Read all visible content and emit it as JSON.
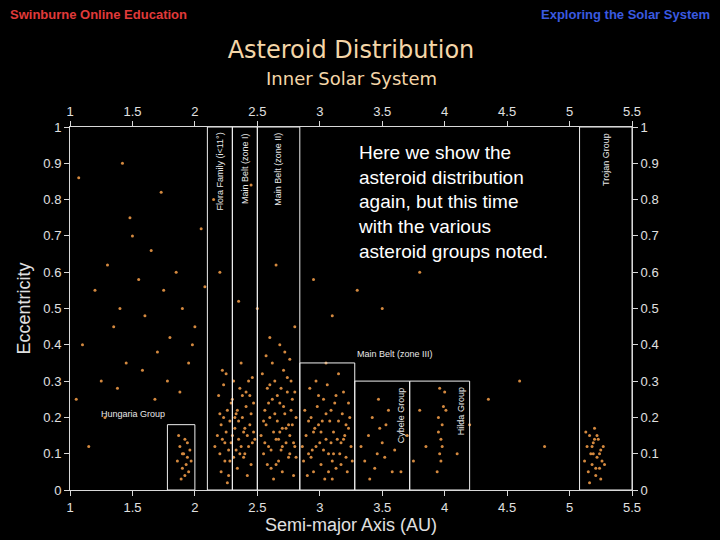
{
  "chart_data": {
    "type": "scatter",
    "title": "Asteroid Distribution",
    "subtitle": "Inner Solar System",
    "headers": [
      "Swinburne Online Education",
      "Exploring the Solar System"
    ],
    "x_label": "Semi-major Axis (AU)",
    "y_label": "Eccentricity",
    "xlim": [
      1,
      5.5
    ],
    "xticks": [
      1,
      1.5,
      2,
      2.5,
      3,
      3.5,
      4,
      4.5,
      5,
      5.5
    ],
    "ylim": [
      0,
      1
    ],
    "yticks": [
      0,
      0.1,
      0.2,
      0.3,
      0.4,
      0.5,
      0.6,
      0.7,
      0.8,
      0.9,
      1
    ],
    "grid": false,
    "color": "#d4893f",
    "marker": "dot",
    "annotation": [
      "Here we show the",
      "asteroid distribution",
      "again, but this time",
      "with the various",
      "asteroid groups noted."
    ],
    "groups": [
      {
        "label": "Hungaria Group",
        "x": [
          1.78,
          2.0
        ],
        "top": 0.18
      },
      {
        "label": "Flora Family (i<11°)",
        "x": [
          2.1,
          2.3
        ],
        "top": 1
      },
      {
        "label": "Main Belt (zone I)",
        "x": [
          2.3,
          2.5
        ],
        "top": 1
      },
      {
        "label": "Main Belt (zone II)",
        "x": [
          2.5,
          2.84
        ],
        "top": 1
      },
      {
        "label": "Main Belt (zone III)",
        "x": [
          2.84,
          3.28
        ],
        "top": 0.35
      },
      {
        "label": "Cybele Group",
        "x": [
          3.28,
          3.72
        ],
        "top": 0.3
      },
      {
        "label": "Hilda Group",
        "x": [
          3.72,
          4.2
        ],
        "top": 0.3
      },
      {
        "label": "Trojan Group",
        "x": [
          5.08,
          5.5
        ],
        "top": 1
      }
    ],
    "x": [
      1.86,
      1.88,
      1.9,
      1.91,
      1.92,
      1.93,
      1.94,
      1.95,
      1.96,
      1.87,
      1.89,
      1.92,
      1.94,
      1.97,
      1.9,
      2.16,
      2.18,
      2.2,
      2.21,
      2.22,
      2.23,
      2.24,
      2.25,
      2.26,
      2.27,
      2.28,
      2.29,
      2.3,
      2.31,
      2.32,
      2.33,
      2.34,
      2.35,
      2.36,
      2.37,
      2.38,
      2.39,
      2.4,
      2.41,
      2.42,
      2.43,
      2.44,
      2.45,
      2.46,
      2.47,
      2.19,
      2.21,
      2.23,
      2.25,
      2.27,
      2.29,
      2.31,
      2.33,
      2.35,
      2.37,
      2.39,
      2.41,
      2.43,
      2.45,
      2.47,
      2.22,
      2.26,
      2.3,
      2.34,
      2.38,
      2.42,
      2.46,
      2.2,
      2.24,
      2.28,
      2.32,
      2.36,
      2.4,
      2.44,
      2.48,
      2.53,
      2.55,
      2.56,
      2.57,
      2.58,
      2.59,
      2.6,
      2.61,
      2.62,
      2.63,
      2.64,
      2.65,
      2.66,
      2.67,
      2.68,
      2.69,
      2.7,
      2.71,
      2.72,
      2.73,
      2.74,
      2.75,
      2.76,
      2.77,
      2.78,
      2.79,
      2.8,
      2.81,
      2.54,
      2.58,
      2.62,
      2.66,
      2.7,
      2.74,
      2.78,
      2.56,
      2.6,
      2.64,
      2.68,
      2.72,
      2.76,
      2.8,
      2.55,
      2.59,
      2.63,
      2.67,
      2.71,
      2.75,
      2.79,
      2.57,
      2.61,
      2.65,
      2.69,
      2.73,
      2.77,
      2.81,
      2.6,
      2.68,
      2.76,
      2.7,
      2.87,
      2.89,
      2.91,
      2.93,
      2.95,
      2.97,
      2.99,
      3.01,
      3.03,
      3.05,
      3.07,
      3.09,
      3.11,
      3.13,
      3.15,
      3.17,
      3.19,
      3.21,
      3.23,
      3.25,
      2.88,
      2.92,
      2.96,
      3,
      3.04,
      3.08,
      3.12,
      3.16,
      3.2,
      3.24,
      2.9,
      2.94,
      2.98,
      3.02,
      3.06,
      3.1,
      3.14,
      3.18,
      3.22,
      3.26,
      2.86,
      2.97,
      3.01,
      3.05,
      3.09,
      3.13,
      3.17,
      3.21,
      2.93,
      3.15,
      3.03,
      3.07,
      3.11,
      2.99,
      3.19,
      2.91,
      3.23,
      3.05,
      3.1,
      2.95,
      3.33,
      3.36,
      3.39,
      3.42,
      3.44,
      3.46,
      3.48,
      3.5,
      3.52,
      3.55,
      3.58,
      3.4,
      3.47,
      3.53,
      3.6,
      3.94,
      3.96,
      3.97,
      3.98,
      3.95,
      3.99,
      4,
      3.96,
      3.97,
      3.98,
      3.95,
      4.01,
      3.7,
      3.75,
      3.8,
      3.85,
      4.1,
      4.2,
      4.35,
      4.6,
      4.8,
      3.65,
      5.12,
      5.14,
      5.15,
      5.16,
      5.17,
      5.18,
      5.19,
      5.2,
      5.21,
      5.22,
      5.23,
      5.24,
      5.25,
      5.26,
      5.27,
      5.13,
      5.16,
      5.19,
      5.22,
      5.25,
      5.28,
      5.18,
      5.21,
      5.24,
      5.2,
      1.05,
      1.1,
      1.2,
      1.25,
      1.3,
      1.35,
      1.4,
      1.45,
      1.5,
      1.55,
      1.6,
      1.65,
      1.7,
      1.75,
      1.8,
      1.85,
      1.9,
      1.95,
      2.0,
      2.05,
      1.15,
      1.28,
      1.38,
      1.48,
      1.58,
      1.68,
      1.78,
      1.88,
      1.98,
      2.08,
      2.2,
      2.35,
      2.5,
      2.65,
      2.8,
      2.95,
      3.1,
      3.3,
      3.5,
      3.8,
      1.07,
      1.42,
      1.73,
      2.15,
      2.45
    ],
    "values": [
      0.08,
      0.12,
      0.06,
      0.1,
      0.14,
      0.07,
      0.09,
      0.05,
      0.11,
      0.15,
      0.03,
      0.04,
      0.13,
      0.08,
      0.1,
      0.12,
      0.15,
      0.1,
      0.18,
      0.14,
      0.2,
      0.08,
      0.16,
      0.22,
      0.11,
      0.19,
      0.13,
      0.25,
      0.09,
      0.17,
      0.21,
      0.06,
      0.14,
      0.28,
      0.12,
      0.2,
      0.16,
      0.1,
      0.23,
      0.15,
      0.3,
      0.18,
      0.07,
      0.13,
      0.24,
      0.26,
      0.05,
      0.29,
      0.32,
      0.04,
      0.24,
      0.3,
      0.11,
      0.19,
      0.35,
      0.09,
      0.27,
      0.12,
      0.21,
      0.16,
      0.33,
      0.02,
      0.15,
      0.22,
      0.26,
      0.04,
      0.31,
      0.21,
      0.13,
      0.08,
      0.2,
      0.1,
      0.17,
      0.26,
      0.14,
      0.15,
      0.1,
      0.22,
      0.18,
      0.28,
      0.12,
      0.2,
      0.06,
      0.25,
      0.16,
      0.3,
      0.14,
      0.19,
      0.08,
      0.24,
      0.11,
      0.17,
      0.33,
      0.21,
      0.13,
      0.27,
      0.09,
      0.15,
      0.22,
      0.18,
      0.04,
      0.12,
      0.2,
      0.32,
      0.07,
      0.35,
      0.26,
      0.05,
      0.31,
      0.25,
      0.13,
      0.29,
      0.21,
      0.16,
      0.38,
      0.1,
      0.27,
      0.19,
      0.24,
      0.03,
      0.14,
      0.23,
      0.18,
      0.13,
      0.37,
      0.11,
      0.07,
      0.28,
      0.17,
      0.3,
      0.09,
      0.42,
      0.4,
      0.36,
      0.12,
      0.08,
      0.15,
      0.1,
      0.2,
      0.05,
      0.12,
      0.18,
      0.07,
      0.25,
      0.14,
      0.1,
      0.22,
      0.16,
      0.06,
      0.19,
      0.13,
      0.27,
      0.09,
      0.17,
      0.12,
      0.22,
      0.28,
      0.17,
      0.13,
      0.03,
      0.19,
      0.24,
      0.1,
      0.15,
      0.2,
      0.04,
      0.11,
      0.23,
      0.19,
      0.29,
      0.08,
      0.14,
      0.21,
      0.05,
      0.08,
      0.12,
      0.3,
      0.16,
      0.21,
      0.13,
      0.26,
      0.07,
      0.18,
      0.09,
      0.32,
      0.11,
      0.05,
      0.1,
      0.26,
      0.14,
      0.19,
      0.24,
      0.35,
      0.03,
      0.16,
      0.12,
      0.08,
      0.15,
      0.2,
      0.06,
      0.1,
      0.17,
      0.13,
      0.09,
      0.22,
      0.05,
      0.03,
      0.25,
      0.18,
      0.11,
      0.05,
      0.1,
      0.14,
      0.18,
      0.2,
      0.23,
      0.27,
      0.28,
      0.08,
      0.12,
      0.16,
      0.22,
      0.15,
      0.08,
      0.22,
      0.12,
      0.1,
      0.18,
      0.25,
      0.3,
      0.12,
      0.05,
      0.08,
      0.12,
      0.05,
      0.15,
      0.1,
      0.07,
      0.13,
      0.17,
      0.04,
      0.09,
      0.14,
      0.06,
      0.11,
      0.08,
      0.12,
      0.16,
      0.02,
      0.1,
      0.15,
      0.03,
      0.07,
      0.12,
      0.06,
      0.1,
      0.14,
      0.25,
      0.4,
      0.55,
      0.3,
      0.62,
      0.45,
      0.5,
      0.35,
      0.7,
      0.58,
      0.48,
      0.66,
      0.38,
      0.55,
      0.42,
      0.6,
      0.5,
      0.35,
      0.45,
      0.72,
      0.12,
      0.2,
      0.28,
      0.75,
      0.33,
      0.25,
      0.3,
      0.27,
      0.4,
      0.56,
      0.6,
      0.52,
      0.5,
      0.62,
      0.45,
      0.58,
      0.48,
      0.55,
      0.5,
      0.6,
      0.86,
      0.9,
      0.82,
      0.8,
      0.84
    ]
  }
}
